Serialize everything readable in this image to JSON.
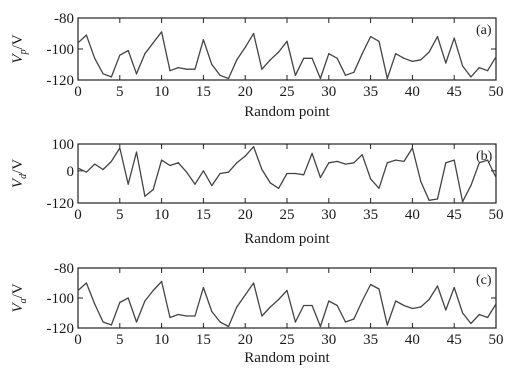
{
  "chart_data": [
    {
      "type": "line",
      "panel_label": "(a)",
      "ylabel": "V_p/V",
      "ylabel_main": "V",
      "ylabel_sub": "p",
      "ylabel_unit": "/V",
      "xlabel": "Random point",
      "xlim": [
        0,
        50
      ],
      "ylim": [
        -120,
        -80
      ],
      "xticks": [
        0,
        5,
        10,
        15,
        20,
        25,
        30,
        35,
        40,
        45,
        50
      ],
      "yticks": [
        -120,
        -100,
        -80
      ],
      "x": [
        0,
        1,
        2,
        3,
        4,
        5,
        6,
        7,
        8,
        9,
        10,
        11,
        12,
        13,
        14,
        15,
        16,
        17,
        18,
        19,
        20,
        21,
        22,
        23,
        24,
        25,
        26,
        27,
        28,
        29,
        30,
        31,
        32,
        33,
        34,
        35,
        36,
        37,
        38,
        39,
        40,
        41,
        42,
        43,
        44,
        45,
        46,
        47,
        48,
        49,
        50
      ],
      "series": [
        {
          "values": [
            -96,
            -91,
            -106,
            -116,
            -118,
            -104,
            -101,
            -116,
            -103,
            -96,
            -89,
            -114,
            -112,
            -113,
            -113,
            -94,
            -110,
            -117,
            -119,
            -107,
            -99,
            -90,
            -113,
            -107,
            -102,
            -95,
            -117,
            -106,
            -106,
            -119,
            -103,
            -106,
            -117,
            -115,
            -103,
            -92,
            -95,
            -119,
            -103,
            -106,
            -108,
            -107,
            -102,
            -92,
            -109,
            -93,
            -111,
            -118,
            -112,
            -114,
            -105
          ]
        }
      ]
    },
    {
      "type": "line",
      "panel_label": "(b)",
      "ylabel": "V_d/V",
      "ylabel_main": "V",
      "ylabel_sub": "d",
      "ylabel_unit": "/V",
      "xlabel": "Random point",
      "xlim": [
        0,
        50
      ],
      "ylim": [
        -120,
        100
      ],
      "xticks": [
        0,
        5,
        10,
        15,
        20,
        25,
        30,
        35,
        40,
        45,
        50
      ],
      "yticks": [
        -120,
        0,
        100
      ],
      "x": [
        0,
        1,
        2,
        3,
        4,
        5,
        6,
        7,
        8,
        9,
        10,
        11,
        12,
        13,
        14,
        15,
        16,
        17,
        18,
        19,
        20,
        21,
        22,
        23,
        24,
        25,
        26,
        27,
        28,
        29,
        30,
        31,
        32,
        33,
        34,
        35,
        36,
        37,
        38,
        39,
        40,
        41,
        42,
        43,
        44,
        45,
        46,
        47,
        48,
        49,
        50
      ],
      "series": [
        {
          "values": [
            10,
            -5,
            25,
            5,
            35,
            85,
            -50,
            70,
            -95,
            -70,
            40,
            20,
            30,
            -5,
            -50,
            0,
            -55,
            -10,
            -5,
            30,
            55,
            90,
            5,
            -45,
            -65,
            -10,
            -10,
            -15,
            65,
            -25,
            30,
            35,
            25,
            30,
            60,
            -30,
            -65,
            30,
            40,
            35,
            85,
            -40,
            -110,
            -105,
            30,
            40,
            -115,
            -55,
            30,
            40,
            -25
          ]
        }
      ]
    },
    {
      "type": "line",
      "panel_label": "(c)",
      "ylabel": "V_a/V",
      "ylabel_main": "V",
      "ylabel_sub": "a",
      "ylabel_unit": "/V",
      "xlabel": "Random point",
      "xlim": [
        0,
        50
      ],
      "ylim": [
        -120,
        -80
      ],
      "xticks": [
        0,
        5,
        10,
        15,
        20,
        25,
        30,
        35,
        40,
        45,
        50
      ],
      "yticks": [
        -120,
        -100,
        -80
      ],
      "x": [
        0,
        1,
        2,
        3,
        4,
        5,
        6,
        7,
        8,
        9,
        10,
        11,
        12,
        13,
        14,
        15,
        16,
        17,
        18,
        19,
        20,
        21,
        22,
        23,
        24,
        25,
        26,
        27,
        28,
        29,
        30,
        31,
        32,
        33,
        34,
        35,
        36,
        37,
        38,
        39,
        40,
        41,
        42,
        43,
        44,
        45,
        46,
        47,
        48,
        49,
        50
      ],
      "series": [
        {
          "values": [
            -95,
            -90,
            -104,
            -116,
            -118,
            -103,
            -100,
            -116,
            -102,
            -95,
            -89,
            -113,
            -111,
            -112,
            -112,
            -93,
            -109,
            -116,
            -119,
            -106,
            -98,
            -90,
            -112,
            -106,
            -101,
            -95,
            -116,
            -105,
            -105,
            -119,
            -102,
            -105,
            -116,
            -114,
            -102,
            -91,
            -94,
            -118,
            -102,
            -105,
            -107,
            -106,
            -101,
            -92,
            -108,
            -93,
            -110,
            -117,
            -111,
            -113,
            -104
          ]
        }
      ]
    }
  ]
}
